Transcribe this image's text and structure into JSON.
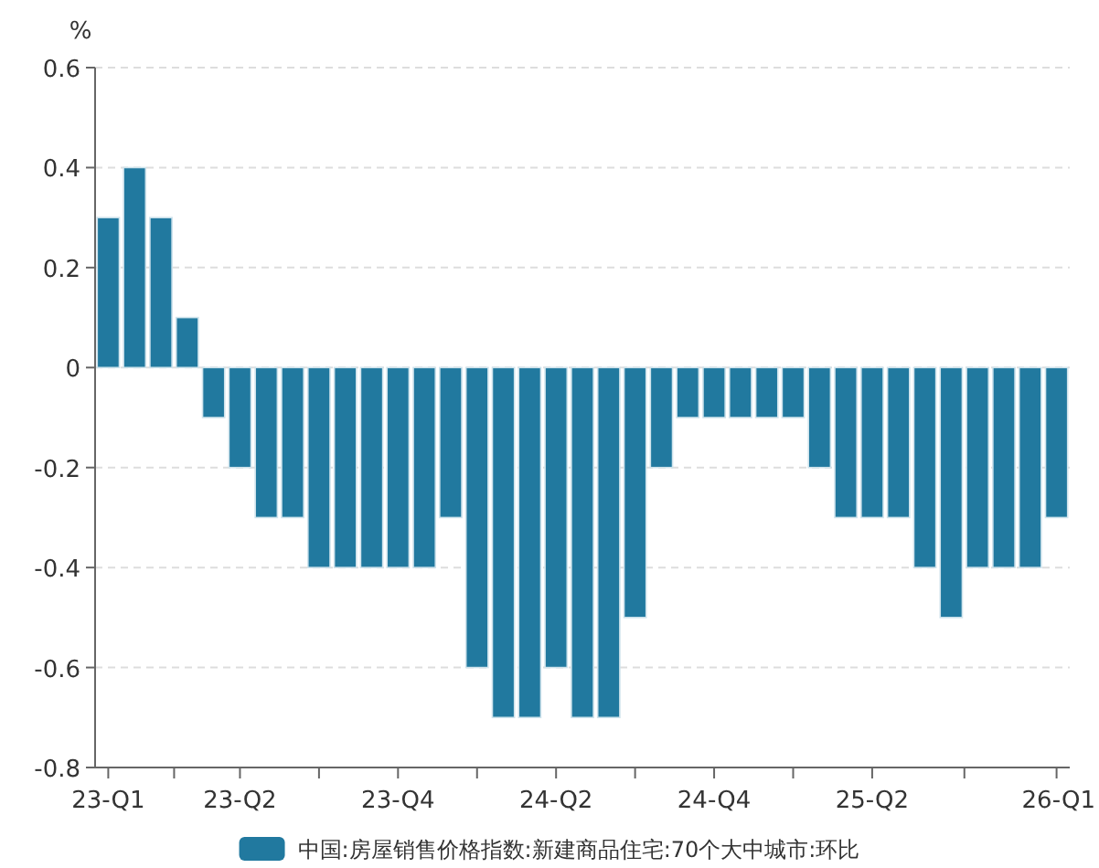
{
  "chart_data": {
    "type": "bar",
    "ylabel": "%",
    "categories": [
      "23-Q1",
      null,
      null,
      null,
      null,
      "23-Q2",
      null,
      null,
      null,
      null,
      null,
      "23-Q4",
      null,
      null,
      null,
      null,
      null,
      "24-Q2",
      null,
      null,
      null,
      null,
      null,
      "24-Q4",
      null,
      null,
      null,
      null,
      null,
      "25-Q2",
      null,
      null,
      null,
      null,
      null,
      null,
      "26-Q1"
    ],
    "series": [
      {
        "name": "中国:房屋销售价格指数:新建商品住宅:70个大中城市:环比",
        "color": "#21799f",
        "values": [
          0.3,
          0.4,
          0.3,
          0.1,
          -0.1,
          -0.2,
          -0.3,
          -0.3,
          -0.4,
          -0.4,
          -0.4,
          -0.4,
          -0.4,
          -0.3,
          -0.6,
          -0.7,
          -0.7,
          -0.6,
          -0.7,
          -0.7,
          -0.5,
          -0.2,
          -0.1,
          -0.1,
          -0.1,
          -0.1,
          -0.1,
          -0.2,
          -0.3,
          -0.3,
          -0.3,
          -0.4,
          -0.5,
          -0.4,
          -0.4,
          -0.4,
          -0.3
        ]
      }
    ],
    "ylim": [
      -0.8,
      0.6
    ],
    "yticks": [
      -0.8,
      -0.6,
      -0.4,
      -0.2,
      0,
      0.2,
      0.4,
      0.6
    ],
    "grid": "y",
    "legend": "bottom"
  }
}
